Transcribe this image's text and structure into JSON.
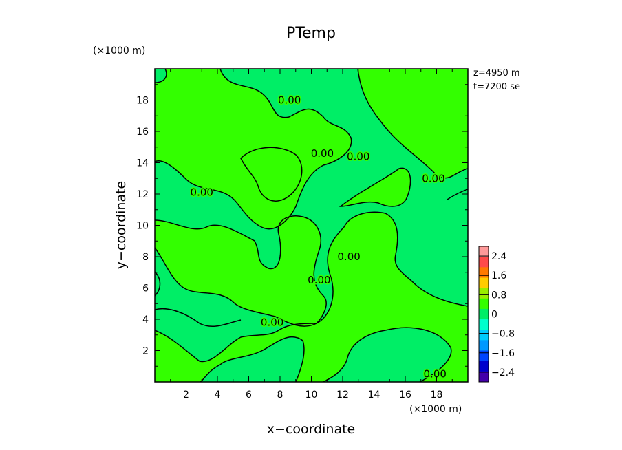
{
  "chart_data": {
    "type": "contour",
    "title": "PTemp",
    "xlabel": "x−coordinate",
    "ylabel": "y−coordinate",
    "x_unit": "(×1000 m)",
    "y_unit": "(×1000 m)",
    "xlim": [
      0,
      20
    ],
    "ylim": [
      0,
      20
    ],
    "xticks": [
      "2",
      "4",
      "6",
      "8",
      "10",
      "12",
      "14",
      "16",
      "18"
    ],
    "yticks": [
      "2",
      "4",
      "6",
      "8",
      "10",
      "12",
      "14",
      "16",
      "18"
    ],
    "contour_level_label": "0.00",
    "annotation_z": "z=4950 m",
    "annotation_t": "t=7200 se",
    "colorbar": {
      "ticks": [
        "2.4",
        "1.6",
        "0.8",
        "0",
        "−0.8",
        "−1.6",
        "−2.4"
      ],
      "range": [
        -2.8,
        2.8
      ],
      "colors_top_to_bottom": [
        "#ff9a9a",
        "#ff4a4a",
        "#ff7a00",
        "#ffcc00",
        "#99ee00",
        "#33ff00",
        "#00ee66",
        "#00ffcc",
        "#00ccff",
        "#0099ff",
        "#0044ff",
        "#0000cc",
        "#4400aa"
      ]
    },
    "field_colors": {
      "positive": "#33ff00",
      "negative": "#00ee66"
    },
    "contour_labels": [
      {
        "x": 8.6,
        "y": 18.0
      },
      {
        "x": 13.0,
        "y": 14.4
      },
      {
        "x": 3.0,
        "y": 12.1
      },
      {
        "x": 10.7,
        "y": 14.6
      },
      {
        "x": 17.8,
        "y": 13.0
      },
      {
        "x": 12.4,
        "y": 8.0
      },
      {
        "x": 10.5,
        "y": 6.5
      },
      {
        "x": 7.5,
        "y": 3.8
      },
      {
        "x": 17.9,
        "y": 0.5
      }
    ]
  }
}
